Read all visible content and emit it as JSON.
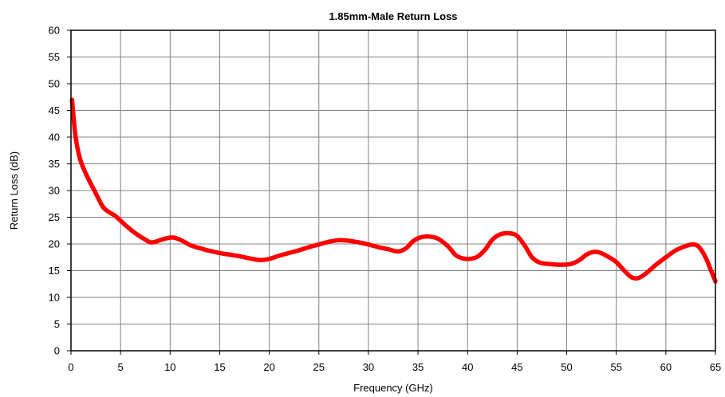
{
  "chart_data": {
    "type": "line",
    "title": "1.85mm-Male Return Loss",
    "xlabel": "Frequency (GHz)",
    "ylabel": "Return Loss (dB)",
    "xlim": [
      0,
      65
    ],
    "ylim": [
      0,
      60
    ],
    "x_ticks": [
      "0",
      "5",
      "10",
      "15",
      "20",
      "25",
      "30",
      "35",
      "40",
      "45",
      "50",
      "55",
      "60",
      "65"
    ],
    "y_ticks": [
      "0",
      "5",
      "10",
      "15",
      "20",
      "25",
      "30",
      "35",
      "40",
      "45",
      "50",
      "55",
      "60"
    ],
    "grid": true,
    "legend": "none",
    "series": [
      {
        "color": "#ff0000",
        "points": [
          [
            0.1,
            47
          ],
          [
            0.2,
            45
          ],
          [
            0.4,
            41
          ],
          [
            0.6,
            38.5
          ],
          [
            0.9,
            36
          ],
          [
            1.3,
            34
          ],
          [
            1.8,
            32
          ],
          [
            2.5,
            29.5
          ],
          [
            3.2,
            27
          ],
          [
            3.8,
            26
          ],
          [
            4.5,
            25.2
          ],
          [
            5.5,
            23.5
          ],
          [
            6.5,
            22
          ],
          [
            7.5,
            20.8
          ],
          [
            8.0,
            20.3
          ],
          [
            8.5,
            20.4
          ],
          [
            9.5,
            21
          ],
          [
            10.3,
            21.2
          ],
          [
            11,
            20.8
          ],
          [
            12,
            19.8
          ],
          [
            13,
            19.2
          ],
          [
            14,
            18.7
          ],
          [
            15,
            18.3
          ],
          [
            16,
            18
          ],
          [
            17,
            17.7
          ],
          [
            18,
            17.3
          ],
          [
            19,
            17
          ],
          [
            20,
            17.2
          ],
          [
            21,
            17.8
          ],
          [
            22,
            18.3
          ],
          [
            23,
            18.8
          ],
          [
            24,
            19.4
          ],
          [
            25,
            19.9
          ],
          [
            26,
            20.4
          ],
          [
            27,
            20.7
          ],
          [
            28,
            20.6
          ],
          [
            29,
            20.3
          ],
          [
            30,
            19.9
          ],
          [
            31,
            19.4
          ],
          [
            32,
            19
          ],
          [
            33,
            18.6
          ],
          [
            33.8,
            19.2
          ],
          [
            34.5,
            20.5
          ],
          [
            35.2,
            21.2
          ],
          [
            36,
            21.4
          ],
          [
            37,
            21
          ],
          [
            38,
            19.6
          ],
          [
            38.8,
            17.9
          ],
          [
            39.5,
            17.3
          ],
          [
            40.2,
            17.2
          ],
          [
            41,
            17.6
          ],
          [
            41.8,
            19
          ],
          [
            42.5,
            20.8
          ],
          [
            43.3,
            21.8
          ],
          [
            44.2,
            22
          ],
          [
            45,
            21.5
          ],
          [
            45.8,
            19.6
          ],
          [
            46.5,
            17.5
          ],
          [
            47.3,
            16.5
          ],
          [
            48.5,
            16.2
          ],
          [
            49.5,
            16.1
          ],
          [
            50.5,
            16.3
          ],
          [
            51.3,
            17
          ],
          [
            52,
            18
          ],
          [
            52.7,
            18.5
          ],
          [
            53.3,
            18.4
          ],
          [
            54,
            17.8
          ],
          [
            55,
            16.6
          ],
          [
            55.8,
            15
          ],
          [
            56.5,
            13.8
          ],
          [
            57.2,
            13.6
          ],
          [
            58,
            14.5
          ],
          [
            59,
            16.1
          ],
          [
            60,
            17.5
          ],
          [
            61,
            18.8
          ],
          [
            62,
            19.6
          ],
          [
            62.7,
            19.9
          ],
          [
            63.3,
            19.5
          ],
          [
            64,
            17.5
          ],
          [
            64.6,
            14.8
          ],
          [
            65,
            13
          ]
        ]
      }
    ]
  }
}
